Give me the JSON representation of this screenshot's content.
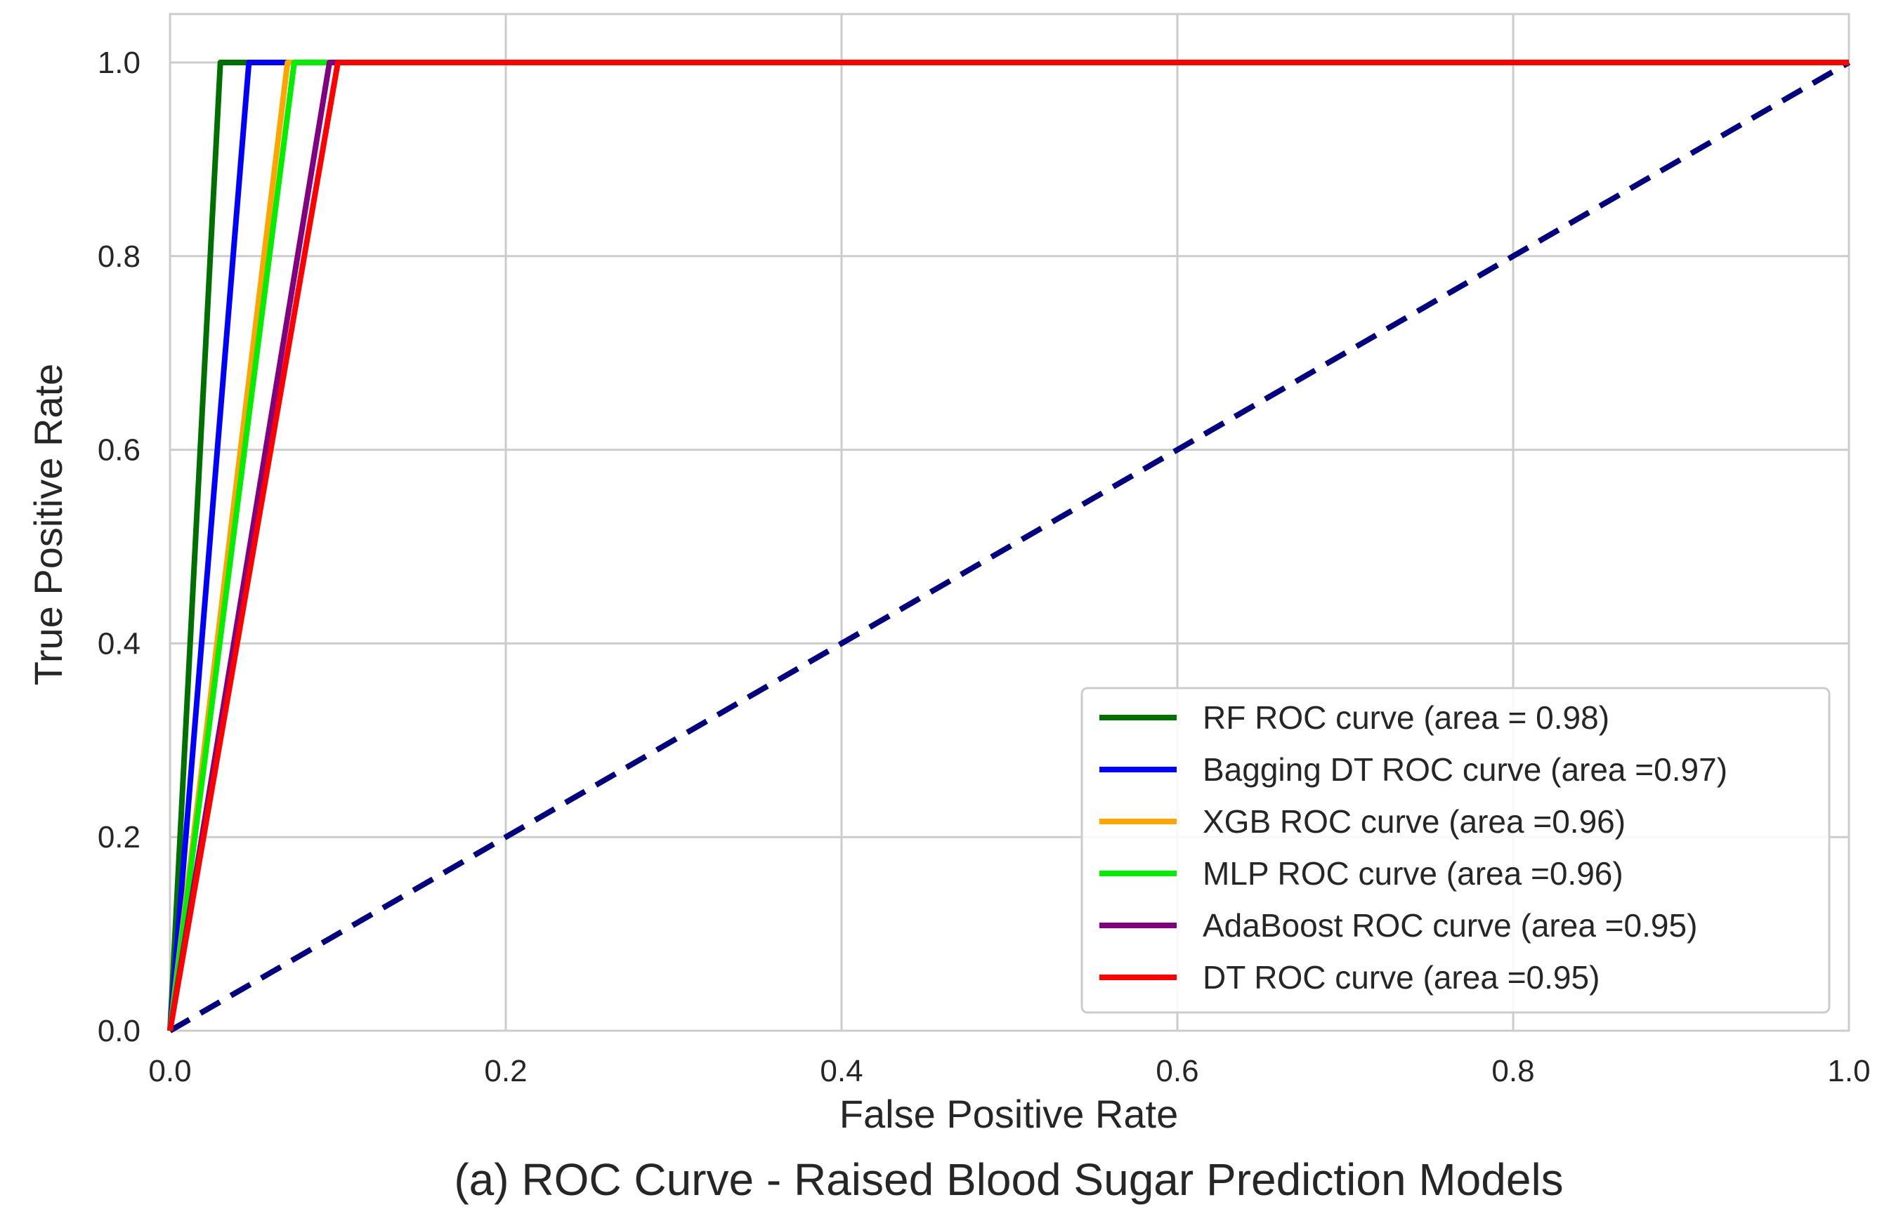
{
  "chart_data": {
    "type": "line",
    "title": "",
    "caption": "(a) ROC Curve - Raised Blood Sugar Prediction Models",
    "xlabel": "False Positive Rate",
    "ylabel": "True Positive Rate",
    "xlim": [
      0.0,
      1.0
    ],
    "ylim": [
      0.0,
      1.05
    ],
    "xticks": [
      0.0,
      0.2,
      0.4,
      0.6,
      0.8,
      1.0
    ],
    "xtick_labels": [
      "0.0",
      "0.2",
      "0.4",
      "0.6",
      "0.8",
      "1.0"
    ],
    "yticks": [
      0.0,
      0.2,
      0.4,
      0.6,
      0.8,
      1.0
    ],
    "ytick_labels": [
      "0.0",
      "0.2",
      "0.4",
      "0.6",
      "0.8",
      "1.0"
    ],
    "grid": true,
    "legend_position": "lower-right",
    "series": [
      {
        "name": "RF ROC curve (area = 0.98)",
        "color": "#007000",
        "x": [
          0.0,
          0.03,
          1.0
        ],
        "y": [
          0.0,
          1.0,
          1.0
        ]
      },
      {
        "name": "Bagging DT ROC curve (area =0.97)",
        "color": "#0000ff",
        "x": [
          0.0,
          0.047,
          1.0
        ],
        "y": [
          0.0,
          1.0,
          1.0
        ]
      },
      {
        "name": "XGB ROC curve (area =0.96)",
        "color": "#ffa500",
        "x": [
          0.0,
          0.07,
          1.0
        ],
        "y": [
          0.0,
          1.0,
          1.0
        ]
      },
      {
        "name": "MLP ROC curve (area =0.96)",
        "color": "#00ee00",
        "x": [
          0.0,
          0.074,
          1.0
        ],
        "y": [
          0.0,
          1.0,
          1.0
        ]
      },
      {
        "name": "AdaBoost ROC curve (area =0.95)",
        "color": "#800080",
        "x": [
          0.0,
          0.095,
          1.0
        ],
        "y": [
          0.0,
          1.0,
          1.0
        ]
      },
      {
        "name": "DT ROC curve (area =0.95)",
        "color": "#ff0000",
        "x": [
          0.0,
          0.1,
          1.0
        ],
        "y": [
          0.0,
          1.0,
          1.0
        ]
      }
    ],
    "reference_line": {
      "name": "chance",
      "color": "#000080",
      "x": [
        0.0,
        1.0
      ],
      "y": [
        0.0,
        1.0
      ],
      "style": "dashed"
    }
  }
}
